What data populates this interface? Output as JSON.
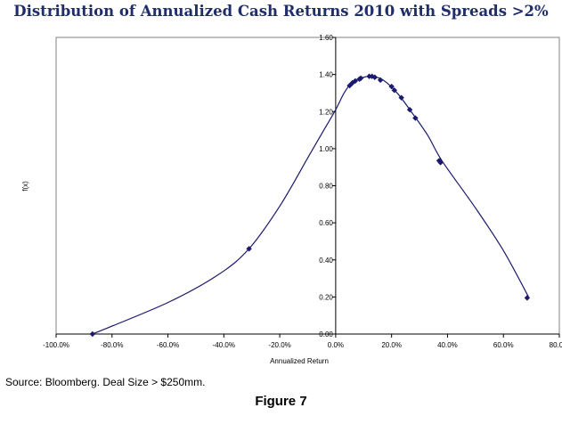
{
  "chart_data": {
    "type": "line",
    "title": "Distribution of Annualized Cash Returns 2010 with Spreads >2%",
    "xlabel": "Annualized Return",
    "ylabel": "f(x)",
    "xlim": [
      -1.0,
      0.8
    ],
    "ylim": [
      0,
      1.6
    ],
    "x_ticks": [
      "-100.0%",
      "-80.0%",
      "-60.0%",
      "-40.0%",
      "-20.0%",
      "0.0%",
      "20.0%",
      "40.0%",
      "60.0%",
      "80.0%"
    ],
    "y_ticks": [
      "0.00",
      "0.20",
      "0.40",
      "0.60",
      "0.80",
      "1.00",
      "1.20",
      "1.40",
      "1.60"
    ],
    "grid": false,
    "legend": "none",
    "line_color": "#1a1a6e",
    "curve": {
      "x": [
        -0.87,
        -0.6,
        -0.42,
        -0.31,
        -0.2,
        -0.1,
        -0.05,
        0.0,
        0.03,
        0.06,
        0.1,
        0.13,
        0.17,
        0.22,
        0.27,
        0.33,
        0.38,
        0.5,
        0.6,
        0.69
      ],
      "y": [
        0.0,
        0.17,
        0.32,
        0.46,
        0.69,
        0.95,
        1.08,
        1.21,
        1.3,
        1.36,
        1.385,
        1.39,
        1.37,
        1.3,
        1.2,
        1.07,
        0.935,
        0.68,
        0.45,
        0.2
      ]
    },
    "points": {
      "x": [
        -0.87,
        -0.31,
        0.05,
        0.06,
        0.07,
        0.085,
        0.09,
        0.12,
        0.13,
        0.14,
        0.16,
        0.2,
        0.21,
        0.235,
        0.265,
        0.285,
        0.37,
        0.375,
        0.685
      ],
      "y": [
        0.0,
        0.46,
        1.34,
        1.355,
        1.365,
        1.375,
        1.38,
        1.39,
        1.39,
        1.385,
        1.37,
        1.335,
        1.315,
        1.275,
        1.21,
        1.165,
        0.935,
        0.925,
        0.195
      ]
    }
  },
  "footer": {
    "source": "Source: Bloomberg. Deal Size > $250mm.",
    "figure": "Figure 7"
  }
}
